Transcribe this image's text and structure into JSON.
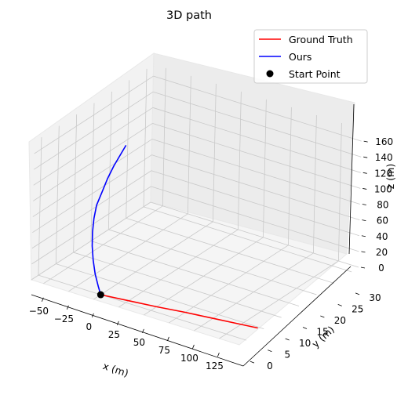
{
  "chart_data": {
    "type": "line",
    "projection": "3d",
    "title": "3D path",
    "xlabel": "x (m)",
    "ylabel": "y (m)",
    "zlabel": "z (m)",
    "xlim": [
      -62,
      145
    ],
    "ylim": [
      -2,
      32
    ],
    "zlim": [
      0,
      175
    ],
    "xticks": [
      "−50",
      "−25",
      "0",
      "25",
      "50",
      "75",
      "100",
      "125"
    ],
    "xtick_values": [
      -50,
      -25,
      0,
      25,
      50,
      75,
      100,
      125
    ],
    "yticks": [
      "0",
      "5",
      "10",
      "15",
      "20",
      "25",
      "30"
    ],
    "ytick_values": [
      0,
      5,
      10,
      15,
      20,
      25,
      30
    ],
    "zticks": [
      "0",
      "20",
      "40",
      "60",
      "80",
      "100",
      "120",
      "140",
      "160"
    ],
    "ztick_values": [
      0,
      20,
      40,
      60,
      80,
      100,
      120,
      140,
      160
    ],
    "grid": true,
    "legend_position": "top-right",
    "series": [
      {
        "name": "Ground Truth",
        "color": "#ff0000",
        "points": [
          [
            0,
            0,
            0
          ],
          [
            25,
            0.8,
            0
          ],
          [
            50,
            1.6,
            0
          ],
          [
            75,
            2.6,
            0
          ],
          [
            100,
            3.4,
            0
          ],
          [
            125,
            4.2,
            0
          ],
          [
            140,
            4.7,
            0
          ]
        ]
      },
      {
        "name": "Ours",
        "color": "#0000ff",
        "points": [
          [
            0,
            0,
            0
          ],
          [
            -4,
            0.4,
            8
          ],
          [
            -9,
            0.9,
            20
          ],
          [
            -13,
            1.4,
            35
          ],
          [
            -16,
            1.9,
            50
          ],
          [
            -18,
            2.5,
            65
          ],
          [
            -19,
            3.1,
            80
          ],
          [
            -19,
            3.8,
            95
          ],
          [
            -17,
            4.7,
            110
          ],
          [
            -15,
            5.6,
            125
          ],
          [
            -12,
            6.5,
            140
          ],
          [
            -8,
            7.4,
            155
          ],
          [
            -5,
            7.8,
            165
          ]
        ]
      },
      {
        "name": "Start Point",
        "color": "#000000",
        "marker": "o",
        "points": [
          [
            0,
            0,
            0
          ]
        ]
      }
    ]
  }
}
